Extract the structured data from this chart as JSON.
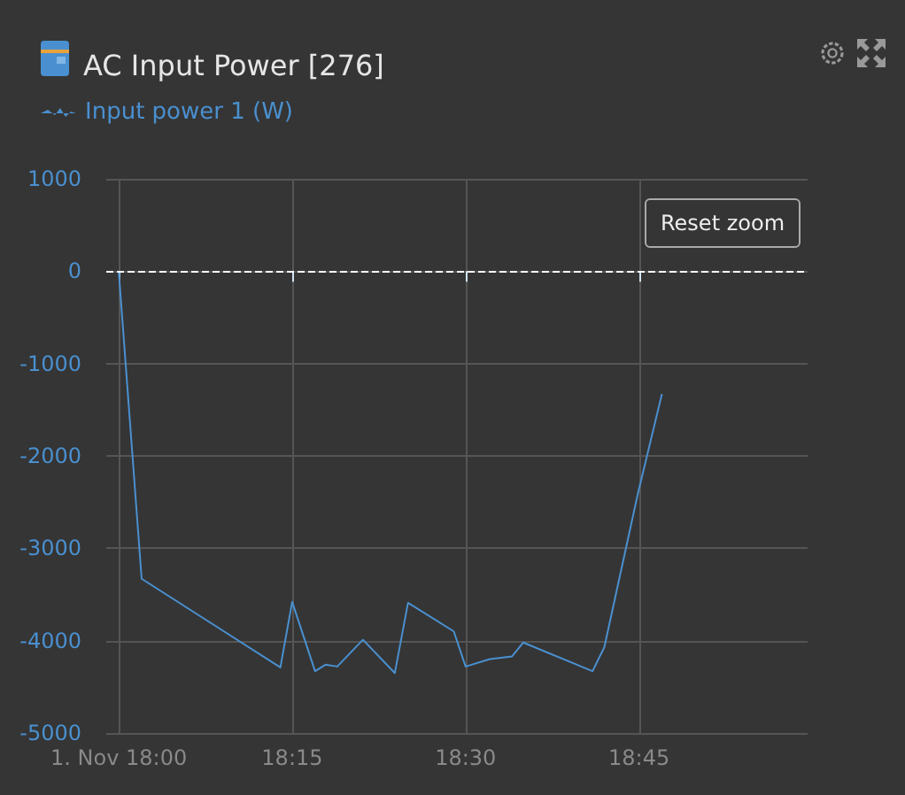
{
  "chart_data": {
    "type": "line",
    "title": "AC Input Power [276]",
    "x": [
      18.0,
      18.033,
      18.233,
      18.25,
      18.283,
      18.298,
      18.315,
      18.352,
      18.398,
      18.417,
      18.483,
      18.5,
      18.535,
      18.567,
      18.583,
      18.683,
      18.7,
      18.748,
      18.783
    ],
    "series": [
      {
        "name": "Input power 1 (W)",
        "color": "#4a90d0",
        "values": [
          0,
          -3330,
          -4290,
          -3580,
          -4330,
          -4260,
          -4280,
          -3990,
          -4350,
          -3590,
          -3900,
          -4280,
          -4200,
          -4170,
          -4020,
          -4330,
          -4070,
          -2420,
          -1330
        ]
      }
    ],
    "xlim": [
      17.982,
      18.993
    ],
    "xticks": [
      {
        "value": 18,
        "label": "1. Nov 18:00"
      },
      {
        "value": 18.25,
        "label": "18:15"
      },
      {
        "value": 18.5,
        "label": "18:30"
      },
      {
        "value": 18.75,
        "label": "18:45"
      }
    ],
    "ylim": [
      -5000,
      1000
    ],
    "yticks": [
      -5000,
      -4000,
      -3000,
      -2000,
      -1000,
      0,
      1000
    ],
    "grid": true,
    "legend": "top left",
    "marker": "none",
    "ref_lines": [
      {
        "axis": "y",
        "value": 0,
        "color": "#ffffff",
        "line_style": "dashed"
      }
    ],
    "annotations": [
      "Reset zoom"
    ]
  }
}
